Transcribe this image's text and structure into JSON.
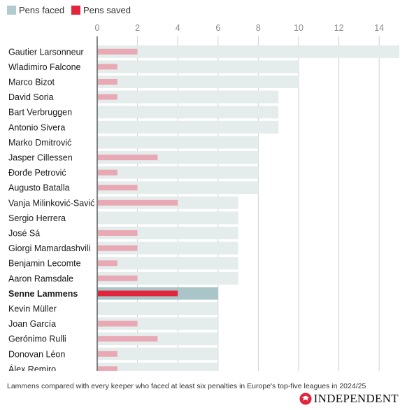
{
  "legend": {
    "faced_label": "Pens faced",
    "saved_label": "Pens saved"
  },
  "colors": {
    "faced": "#e4ecec",
    "saved": "#e8a9b4",
    "faced_highlight": "#a9c5c8",
    "saved_highlight": "#e0253d",
    "legend_faced": "#b1cbcf",
    "legend_saved": "#e0253d"
  },
  "chart_data": {
    "type": "bar",
    "orientation": "horizontal",
    "categories": [
      "Gautier Larsonneur",
      "Wladimiro Falcone",
      "Marco Bizot",
      "David Soria",
      "Bart Verbruggen",
      "Antonio Sivera",
      "Marko Dmitrović",
      "Jasper Cillessen",
      "Đorđe Petrović",
      "Augusto Batalla",
      "Vanja Milinković-Savić",
      "Sergio Herrera",
      "José Sá",
      "Giorgi Mamardashvili",
      "Benjamin Lecomte",
      "Aaron Ramsdale",
      "Senne Lammens",
      "Kevin Müller",
      "Joan García",
      "Gerónimo Rulli",
      "Donovan Léon",
      "Álex Remiro"
    ],
    "series": [
      {
        "name": "Pens faced",
        "values": [
          15,
          10,
          10,
          9,
          9,
          9,
          8,
          8,
          8,
          8,
          7,
          7,
          7,
          7,
          7,
          7,
          6,
          6,
          6,
          6,
          6,
          6
        ]
      },
      {
        "name": "Pens saved",
        "values": [
          2,
          1,
          1,
          1,
          0,
          0,
          0,
          3,
          1,
          2,
          4,
          0,
          2,
          2,
          1,
          2,
          4,
          0,
          2,
          3,
          1,
          1
        ]
      }
    ],
    "highlight": "Senne Lammens",
    "xlim": [
      0,
      15
    ],
    "xticks": [
      0,
      2,
      4,
      6,
      8,
      10,
      12,
      14
    ],
    "grid": true,
    "legend": "top-left"
  },
  "caption": "Lammens compared with every keeper who faced at least six penalties in Europe's top-five leagues in 2024/25",
  "logo": {
    "text": "INDEPENDENT",
    "icon": "eagle-icon"
  }
}
